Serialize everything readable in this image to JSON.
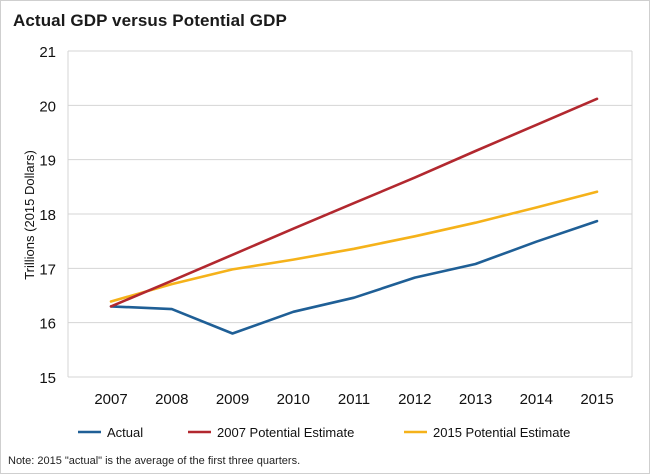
{
  "chart_data": {
    "type": "line",
    "title": "Actual GDP versus Potential GDP",
    "xlabel": "",
    "ylabel": "Trillions (2015 Dollars)",
    "x": [
      2007,
      2008,
      2009,
      2010,
      2011,
      2012,
      2013,
      2014,
      2015
    ],
    "ylim": [
      15,
      21
    ],
    "yticks": [
      15,
      16,
      17,
      18,
      19,
      20,
      21
    ],
    "grid": true,
    "legend_position": "bottom",
    "series": [
      {
        "name": "Actual",
        "color": "#1f5f96",
        "values": [
          16.3,
          16.25,
          15.8,
          16.2,
          16.46,
          16.83,
          17.08,
          17.49,
          17.87
        ]
      },
      {
        "name": "2007 Potential Estimate",
        "color": "#b2282f",
        "values": [
          16.3,
          16.77,
          17.25,
          17.73,
          18.2,
          18.67,
          19.16,
          19.64,
          20.12
        ]
      },
      {
        "name": "2015 Potential Estimate",
        "color": "#f5b21a",
        "values": [
          16.39,
          16.71,
          16.98,
          17.16,
          17.36,
          17.59,
          17.84,
          18.12,
          18.41
        ]
      }
    ],
    "note": "Note: 2015 \"actual\" is the average of the first three quarters."
  }
}
